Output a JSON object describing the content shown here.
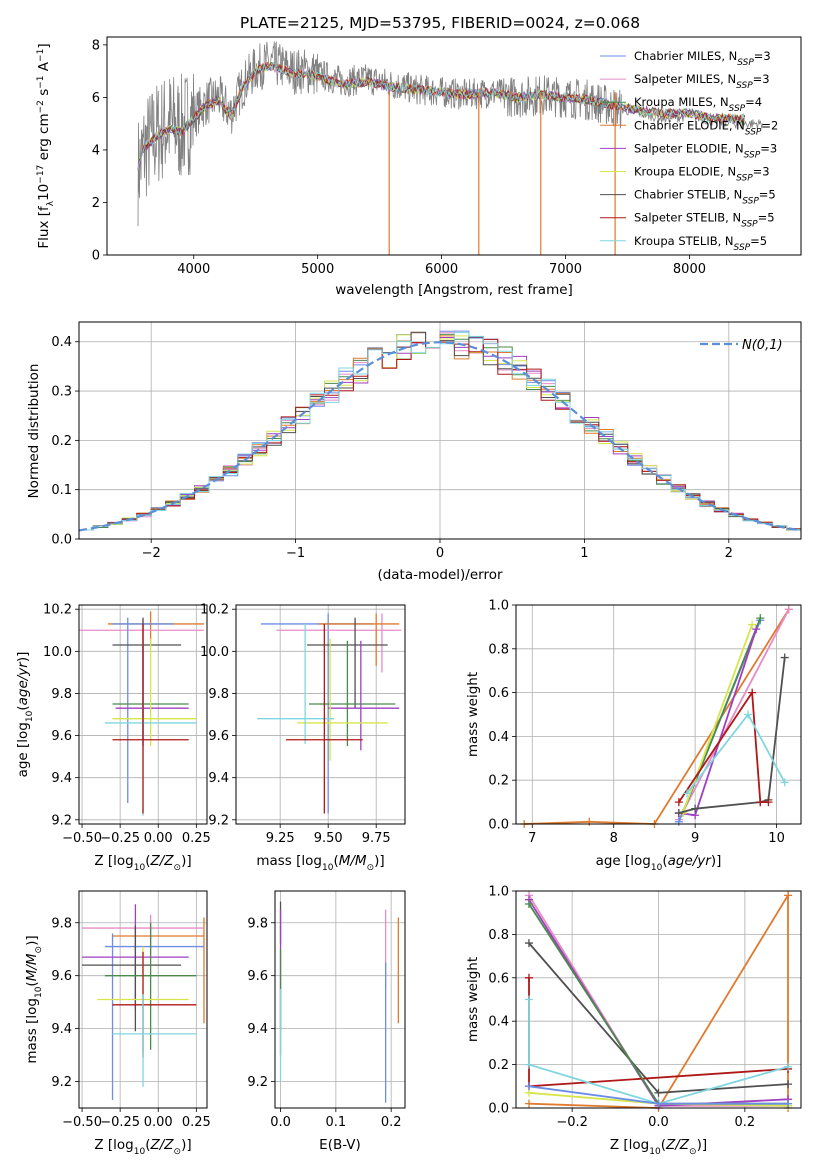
{
  "page": {
    "title": "PLATE=2125, MJD=53795, FIBERID=0024, z=0.068"
  },
  "chart_data": [
    {
      "type": "line",
      "title": "PLATE=2125, MJD=53795, FIBERID=0024, z=0.068",
      "xlabel": "wavelength [Angstrom, rest frame]",
      "ylabel": "Flux [f_λ10^-17 erg cm^-2 s^-1 A^-1]",
      "xlim": [
        3300,
        8900
      ],
      "ylim": [
        0,
        8.3
      ],
      "xticks": [
        4000,
        5000,
        6000,
        7000,
        8000
      ],
      "yticks": [
        0,
        2,
        4,
        6,
        8
      ],
      "grid": false,
      "legend_position": "top-right",
      "legend": [
        {
          "label": "Chabrier MILES, N_SSP=3",
          "color": "#6b8ee6"
        },
        {
          "label": "Salpeter MILES, N_SSP=3",
          "color": "#e88cc8"
        },
        {
          "label": "Kroupa MILES, N_SSP=4",
          "color": "#4a8a4a"
        },
        {
          "label": "Chabrier ELODIE, N_SSP=2",
          "color": "#e07a2e"
        },
        {
          "label": "Salpeter ELODIE, N_SSP=3",
          "color": "#a040c0"
        },
        {
          "label": "Kroupa ELODIE, N_SSP=3",
          "color": "#d6e64a"
        },
        {
          "label": "Chabrier STELIB, N_SSP=5",
          "color": "#505050"
        },
        {
          "label": "Salpeter STELIB, N_SSP=5",
          "color": "#b01818"
        },
        {
          "label": "Kroupa STELIB, N_SSP=5",
          "color": "#7fd6e0"
        }
      ],
      "series": [
        {
          "name": "data",
          "color": "#808080",
          "x": [
            3550,
            3600,
            3700,
            3800,
            3900,
            4000,
            4100,
            4200,
            4300,
            4400,
            4500,
            4600,
            4700,
            4800,
            4900,
            5000,
            5200,
            5400,
            5600,
            5800,
            6000,
            6200,
            6400,
            6600,
            6800,
            7000,
            7200,
            7400,
            7600,
            7800,
            8000,
            8200,
            8400,
            8600,
            8800
          ],
          "y": [
            3.2,
            4.0,
            4.6,
            5.0,
            4.8,
            5.3,
            5.8,
            6.0,
            5.4,
            6.5,
            7.1,
            7.3,
            7.2,
            7.0,
            7.0,
            6.9,
            6.6,
            6.7,
            6.5,
            6.3,
            6.2,
            6.1,
            6.2,
            6.0,
            6.1,
            6.0,
            5.9,
            5.6,
            5.4,
            5.2,
            5.3,
            5.1,
            5.0,
            5.0,
            5.0
          ]
        },
        {
          "name": "Kroupa STELIB, N_SSP=5",
          "color": "#7fd6e0",
          "x": [
            3550,
            3600,
            3700,
            3800,
            3900,
            4000,
            4100,
            4200,
            4300,
            4400,
            4500,
            4600,
            4700,
            4800,
            4900,
            5000,
            5200,
            5400,
            5600,
            5800,
            6000,
            6200,
            6400,
            6600,
            6800,
            7000,
            7200,
            7400,
            7600,
            7800,
            8000,
            8200,
            8400
          ],
          "y": [
            3.4,
            4.1,
            4.5,
            4.8,
            4.7,
            5.2,
            5.7,
            5.9,
            5.3,
            6.4,
            7.0,
            7.2,
            7.1,
            6.9,
            6.9,
            6.8,
            6.5,
            6.6,
            6.4,
            6.3,
            6.2,
            6.1,
            6.2,
            6.0,
            6.1,
            6.0,
            5.9,
            5.7,
            5.5,
            5.4,
            5.4,
            5.2,
            5.2
          ]
        }
      ]
    },
    {
      "type": "line",
      "xlabel": "(data-model)/error",
      "ylabel": "Normed distribution",
      "xlim": [
        -2.5,
        2.5
      ],
      "ylim": [
        0,
        0.44
      ],
      "xticks": [
        -2,
        -1,
        0,
        1,
        2
      ],
      "yticks": [
        0.0,
        0.1,
        0.2,
        0.3,
        0.4
      ],
      "grid": true,
      "legend_position": "top-right",
      "legend": [
        {
          "label": "N(0,1)",
          "color": "#5b8fd9"
        }
      ]
    },
    {
      "type": "scatter",
      "xlabel": "Z [log10(Z/Z⊙)]",
      "ylabel": "age  [log10(age/yr)]",
      "xlim": [
        -0.52,
        0.32
      ],
      "ylim": [
        9.18,
        10.22
      ],
      "xticks": [
        -0.5,
        -0.25,
        0.0,
        0.25
      ],
      "yticks": [
        9.2,
        9.4,
        9.6,
        9.8,
        10.0,
        10.2
      ],
      "grid": true,
      "points": [
        {
          "x": -0.05,
          "y": 10.13,
          "xerr": [
            0.28,
            0.35
          ],
          "yerr": [
            0.1,
            0.06
          ],
          "color": "#e07a2e"
        },
        {
          "x": -0.1,
          "y": 10.1,
          "xerr": [
            0.42,
            0.4
          ],
          "yerr": [
            0.05,
            0.05
          ],
          "color": "#e88cc8"
        },
        {
          "x": -0.2,
          "y": 10.13,
          "xerr": [
            0.1,
            0.3
          ],
          "yerr": [
            0.85,
            0.03
          ],
          "color": "#6b8ee6"
        },
        {
          "x": -0.1,
          "y": 10.03,
          "xerr": [
            0.2,
            0.25
          ],
          "yerr": [
            0.45,
            0.13
          ],
          "color": "#505050"
        },
        {
          "x": -0.1,
          "y": 9.75,
          "xerr": [
            0.2,
            0.3
          ],
          "yerr": [
            0.2,
            0.3
          ],
          "color": "#4a8a4a"
        },
        {
          "x": -0.1,
          "y": 9.73,
          "xerr": [
            0.18,
            0.3
          ],
          "yerr": [
            0.18,
            0.3
          ],
          "color": "#a040c0"
        },
        {
          "x": -0.05,
          "y": 9.68,
          "xerr": [
            0.25,
            0.3
          ],
          "yerr": [
            0.13,
            0.38
          ],
          "color": "#d6e64a"
        },
        {
          "x": -0.1,
          "y": 9.66,
          "xerr": [
            0.25,
            0.35
          ],
          "yerr": [
            0.44,
            0.4
          ],
          "color": "#7fd6e0"
        },
        {
          "x": -0.1,
          "y": 9.58,
          "xerr": [
            0.2,
            0.3
          ],
          "yerr": [
            0.35,
            0.55
          ],
          "color": "#b01818"
        }
      ]
    },
    {
      "type": "scatter",
      "xlabel": "mass [log10(M/M⊙)]",
      "ylabel": "",
      "xlim": [
        9.02,
        9.9
      ],
      "ylim": [
        9.18,
        10.22
      ],
      "xticks": [
        9.25,
        9.5,
        9.75
      ],
      "yticks": [
        9.2,
        9.4,
        9.6,
        9.8,
        10.0,
        10.2
      ],
      "grid": true,
      "points": [
        {
          "x": 9.5,
          "y": 10.13,
          "xerr": [
            0.35,
            0.23
          ],
          "yerr": [
            0.9,
            0.05
          ],
          "color": "#6b8ee6"
        },
        {
          "x": 9.78,
          "y": 10.1,
          "xerr": [
            0.55,
            0.1
          ],
          "yerr": [
            0.2,
            0.08
          ],
          "color": "#e88cc8"
        },
        {
          "x": 9.75,
          "y": 10.13,
          "xerr": [
            0.3,
            0.12
          ],
          "yerr": [
            0.2,
            0.05
          ],
          "color": "#e07a2e"
        },
        {
          "x": 9.64,
          "y": 10.03,
          "xerr": [
            0.25,
            0.17
          ],
          "yerr": [
            0.3,
            0.13
          ],
          "color": "#505050"
        },
        {
          "x": 9.6,
          "y": 9.75,
          "xerr": [
            0.2,
            0.25
          ],
          "yerr": [
            0.2,
            0.3
          ],
          "color": "#4a8a4a"
        },
        {
          "x": 9.67,
          "y": 9.73,
          "xerr": [
            0.17,
            0.2
          ],
          "yerr": [
            0.2,
            0.32
          ],
          "color": "#a040c0"
        },
        {
          "x": 9.51,
          "y": 9.66,
          "xerr": [
            0.17,
            0.3
          ],
          "yerr": [
            0.18,
            0.4
          ],
          "color": "#d6e64a"
        },
        {
          "x": 9.38,
          "y": 9.68,
          "xerr": [
            0.25,
            0.15
          ],
          "yerr": [
            0.12,
            0.45
          ],
          "color": "#7fd6e0"
        },
        {
          "x": 9.48,
          "y": 9.58,
          "xerr": [
            0.2,
            0.2
          ],
          "yerr": [
            0.35,
            0.55
          ],
          "color": "#b01818"
        }
      ]
    },
    {
      "type": "line",
      "xlabel": "age  [log10(age/yr)]",
      "ylabel": "mass weight",
      "xlim": [
        6.8,
        10.3
      ],
      "ylim": [
        0,
        1.0
      ],
      "xticks": [
        7,
        8,
        9,
        10
      ],
      "yticks": [
        0.0,
        0.2,
        0.4,
        0.6,
        0.8,
        1.0
      ],
      "grid": true,
      "series": [
        {
          "color": "#e07a2e",
          "x": [
            6.9,
            7.7,
            8.5,
            10.15
          ],
          "y": [
            0.0,
            0.01,
            0.0,
            0.98
          ]
        },
        {
          "color": "#e88cc8",
          "x": [
            8.8,
            10.15
          ],
          "y": [
            0.02,
            0.98
          ]
        },
        {
          "color": "#6b8ee6",
          "x": [
            8.8,
            9.8
          ],
          "y": [
            0.01,
            0.93
          ]
        },
        {
          "color": "#4a8a4a",
          "x": [
            8.85,
            9.8
          ],
          "y": [
            0.05,
            0.94
          ]
        },
        {
          "color": "#a040c0",
          "x": [
            8.8,
            9.0,
            9.75
          ],
          "y": [
            0.05,
            0.04,
            0.89
          ]
        },
        {
          "color": "#d6e64a",
          "x": [
            8.85,
            9.7
          ],
          "y": [
            0.05,
            0.91
          ]
        },
        {
          "color": "#505050",
          "x": [
            8.8,
            9.0,
            9.8,
            9.9,
            10.1
          ],
          "y": [
            0.05,
            0.07,
            0.1,
            0.11,
            0.76
          ]
        },
        {
          "color": "#b01818",
          "x": [
            8.8,
            9.7,
            9.8,
            9.9
          ],
          "y": [
            0.1,
            0.6,
            0.1,
            0.1
          ]
        },
        {
          "color": "#7fd6e0",
          "x": [
            8.9,
            9.65,
            10.1
          ],
          "y": [
            0.14,
            0.5,
            0.19
          ]
        }
      ]
    },
    {
      "type": "scatter",
      "xlabel": "Z [log10(Z/Z⊙)]",
      "ylabel": "mass [log10(M/M⊙)]",
      "xlim": [
        -0.52,
        0.32
      ],
      "ylim": [
        9.1,
        9.92
      ],
      "xticks": [
        -0.5,
        -0.25,
        0.0,
        0.25
      ],
      "yticks": [
        9.2,
        9.4,
        9.6,
        9.8
      ],
      "grid": true,
      "points": [
        {
          "x": 0.3,
          "y": 9.75,
          "xerr": [
            0.6,
            0.0
          ],
          "yerr": [
            0.33,
            0.07
          ],
          "color": "#e07a2e"
        },
        {
          "x": -0.05,
          "y": 9.78,
          "xerr": [
            0.45,
            0.35
          ],
          "yerr": [
            0.1,
            0.05
          ],
          "color": "#e88cc8"
        },
        {
          "x": -0.3,
          "y": 9.71,
          "xerr": [
            0.05,
            0.6
          ],
          "yerr": [
            0.58,
            0.05
          ],
          "color": "#6b8ee6"
        },
        {
          "x": -0.15,
          "y": 9.67,
          "xerr": [
            0.35,
            0.35
          ],
          "yerr": [
            0.2,
            0.2
          ],
          "color": "#a040c0"
        },
        {
          "x": -0.15,
          "y": 9.64,
          "xerr": [
            0.35,
            0.3
          ],
          "yerr": [
            0.25,
            0.15
          ],
          "color": "#505050"
        },
        {
          "x": -0.05,
          "y": 9.6,
          "xerr": [
            0.3,
            0.3
          ],
          "yerr": [
            0.28,
            0.2
          ],
          "color": "#4a8a4a"
        },
        {
          "x": -0.1,
          "y": 9.51,
          "xerr": [
            0.3,
            0.3
          ],
          "yerr": [
            0.2,
            0.2
          ],
          "color": "#d6e64a"
        },
        {
          "x": -0.1,
          "y": 9.49,
          "xerr": [
            0.2,
            0.35
          ],
          "yerr": [
            0.2,
            0.2
          ],
          "color": "#b01818"
        },
        {
          "x": -0.1,
          "y": 9.38,
          "xerr": [
            0.2,
            0.35
          ],
          "yerr": [
            0.2,
            0.15
          ],
          "color": "#7fd6e0"
        }
      ]
    },
    {
      "type": "scatter",
      "xlabel": "E(B-V)",
      "ylabel": "",
      "xlim": [
        -0.01,
        0.225
      ],
      "ylim": [
        9.1,
        9.92
      ],
      "xticks": [
        0.0,
        0.1,
        0.2
      ],
      "yticks": [
        9.2,
        9.4,
        9.6,
        9.8
      ],
      "grid": true,
      "points": [
        {
          "x": 0.0,
          "y": 9.8,
          "xerr": [
            0,
            0
          ],
          "yerr": [
            0.08,
            0.08
          ],
          "color": "#505050"
        },
        {
          "x": 0.0,
          "y": 9.65,
          "xerr": [
            0,
            0
          ],
          "yerr": [
            0.25,
            0.2
          ],
          "color": "#a040c0"
        },
        {
          "x": 0.0,
          "y": 9.5,
          "xerr": [
            0,
            0
          ],
          "yerr": [
            0.2,
            0.2
          ],
          "color": "#4a8a4a"
        },
        {
          "x": 0.0,
          "y": 9.35,
          "xerr": [
            0,
            0
          ],
          "yerr": [
            0.15,
            0.2
          ],
          "color": "#7fd6e0"
        },
        {
          "x": 0.19,
          "y": 9.7,
          "xerr": [
            0,
            0
          ],
          "yerr": [
            0.15,
            0.15
          ],
          "color": "#e88cc8"
        },
        {
          "x": 0.19,
          "y": 9.45,
          "xerr": [
            0,
            0
          ],
          "yerr": [
            0.33,
            0.2
          ],
          "color": "#6b8ee6"
        },
        {
          "x": 0.213,
          "y": 9.6,
          "xerr": [
            0,
            0
          ],
          "yerr": [
            0.18,
            0.22
          ],
          "color": "#e07a2e"
        }
      ]
    },
    {
      "type": "line",
      "xlabel": "Z [log10(Z/Z⊙)]",
      "ylabel": "mass weight",
      "xlim": [
        -0.33,
        0.33
      ],
      "ylim": [
        0,
        1.0
      ],
      "xticks": [
        -0.2,
        0.0,
        0.2
      ],
      "yticks": [
        0.0,
        0.2,
        0.4,
        0.6,
        0.8,
        1.0
      ],
      "grid": true,
      "series": [
        {
          "color": "#e07a2e",
          "x": [
            -0.3,
            0.0,
            0.3,
            0.3
          ],
          "y": [
            0.02,
            0.0,
            0.98,
            0.0
          ]
        },
        {
          "color": "#e88cc8",
          "x": [
            -0.3,
            0.0,
            0.3
          ],
          "y": [
            0.98,
            0.01,
            0.01
          ]
        },
        {
          "color": "#a040c0",
          "x": [
            -0.3,
            0.0,
            0.3
          ],
          "y": [
            0.96,
            0.01,
            0.04
          ]
        },
        {
          "color": "#505050",
          "x": [
            -0.3,
            0.0,
            0.3
          ],
          "y": [
            0.76,
            0.07,
            0.11
          ]
        },
        {
          "color": "#b01818",
          "x": [
            -0.3,
            -0.3,
            0.3
          ],
          "y": [
            0.6,
            0.1,
            0.18
          ]
        },
        {
          "color": "#7fd6e0",
          "x": [
            -0.3,
            -0.3,
            0.0,
            0.3
          ],
          "y": [
            0.5,
            0.2,
            0.02,
            0.19
          ]
        },
        {
          "color": "#d6e64a",
          "x": [
            -0.3,
            0.0,
            0.3
          ],
          "y": [
            0.07,
            0.02,
            0.01
          ]
        },
        {
          "color": "#4a8a4a",
          "x": [
            -0.3,
            0.0,
            0.3
          ],
          "y": [
            0.94,
            0.02,
            0.02
          ]
        },
        {
          "color": "#6b8ee6",
          "x": [
            -0.3,
            0.0,
            0.3
          ],
          "y": [
            0.1,
            0.02,
            0.02
          ]
        }
      ]
    }
  ]
}
